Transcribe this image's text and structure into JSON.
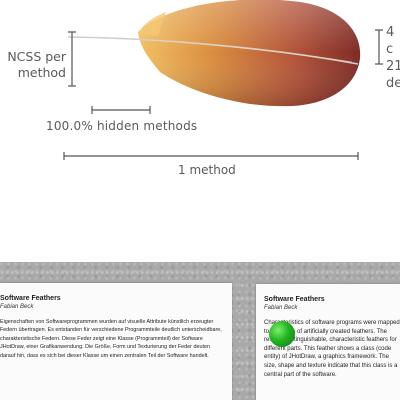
{
  "diagram": {
    "labels": {
      "ncss": "NCSS per\nmethod",
      "hidden": "100.0% hidden methods",
      "method": "1 method",
      "right": "4 c\n21\nde"
    },
    "colors": {
      "feather_light": "#f0b35c",
      "feather_dark": "#7a2a22",
      "line": "#555555"
    }
  },
  "cards": {
    "left": {
      "title": "Software Feathers",
      "author": "Fabian Beck",
      "body": "Eigenschaften von Softwareprogrammen wurden auf visuelle Attribute künstlich erzeugter Federn übertragen. Es entstanden für verschiedene Programmteile deutlich unterscheidbare, charakteristische Federn. Diese Feder zeigt eine Klasse (Programmteil) der Software JHotDraw, einer Grafikanwendung. Die Größe, Form und Texturierung der Feder deuten darauf hin, dass es sich bei dieser Klasse um einen zentralen Teil der Software handelt."
    },
    "right": {
      "title": "Software Feathers",
      "author": "Fabian Beck",
      "body": "Characteristics of software programs were mapped to attributes of artificially created feathers. The result is distinguishable, characteristic feathers for different parts. This feather shows a class (code entity) of JHotDraw, a graphics framework. The size, shape and texture indicate that this class is a central part of the software."
    }
  }
}
